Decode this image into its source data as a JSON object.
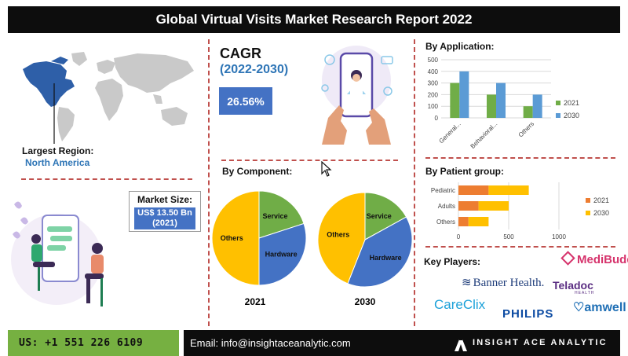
{
  "title": "Global Virtual Visits Market Research Report 2022",
  "region": {
    "label": "Largest Region:",
    "value": "North America"
  },
  "market_size": {
    "label": "Market Size:",
    "value_line1": "US$ 13.50 Bn",
    "value_line2": "(2021)"
  },
  "cagr": {
    "title": "CAGR",
    "period": "(2022-2030)",
    "value": "26.56%"
  },
  "component": {
    "title": "By Component:"
  },
  "application": {
    "title": "By Application:"
  },
  "patient": {
    "title": "By Patient group:"
  },
  "players": {
    "title": "Key Players:",
    "logos": [
      "MediBuddy",
      "Banner Health.",
      "Teladoc",
      "HEALTH",
      "CareClix",
      "PHILIPS",
      "amwell"
    ]
  },
  "footer": {
    "phone": "US: +1 551 226 6109",
    "email": "Email: info@insightaceanalytic.com",
    "brand": "INSIGHT ACE ANALYTIC"
  },
  "colors": {
    "blue": "#4472c4",
    "green": "#70ad47",
    "orange": "#ed7d31",
    "yellow": "#ffc000",
    "accent_red": "#c0504d",
    "phone_bg": "#76b041"
  },
  "icons": [
    "world-map-icon",
    "doctor-phone-illustration",
    "chat-illustration",
    "cursor-icon"
  ],
  "chart_data": [
    {
      "type": "pie",
      "categories": [
        "Service",
        "Hardware",
        "Others"
      ],
      "values": [
        20,
        30,
        50
      ],
      "colors": [
        "#70ad47",
        "#4472c4",
        "#ffc000"
      ],
      "caption": "2021"
    },
    {
      "type": "pie",
      "categories": [
        "Service",
        "Hardware",
        "Others"
      ],
      "values": [
        17,
        39,
        44
      ],
      "colors": [
        "#70ad47",
        "#4472c4",
        "#ffc000"
      ],
      "caption": "2030"
    },
    {
      "type": "bar",
      "categories": [
        "General...",
        "Behavioral...",
        "Others"
      ],
      "series": [
        {
          "name": "2021",
          "values": [
            300,
            200,
            100
          ],
          "color": "#70ad47"
        },
        {
          "name": "2030",
          "values": [
            400,
            300,
            200
          ],
          "color": "#5b9bd5"
        }
      ],
      "ylim": [
        0,
        500
      ],
      "yticks": [
        0,
        100,
        200,
        300,
        400,
        500
      ],
      "legend": "right",
      "grid": true
    },
    {
      "type": "bar",
      "orientation": "horizontal",
      "stacked": true,
      "categories": [
        "Pediatric",
        "Adults",
        "Others"
      ],
      "series": [
        {
          "name": "2021",
          "values": [
            300,
            200,
            100
          ],
          "color": "#ed7d31"
        },
        {
          "name": "2030",
          "values": [
            400,
            300,
            200
          ],
          "color": "#ffc000"
        }
      ],
      "xlim": [
        0,
        1000
      ],
      "xticks": [
        0,
        500,
        1000
      ],
      "legend": "right",
      "grid": true
    }
  ]
}
